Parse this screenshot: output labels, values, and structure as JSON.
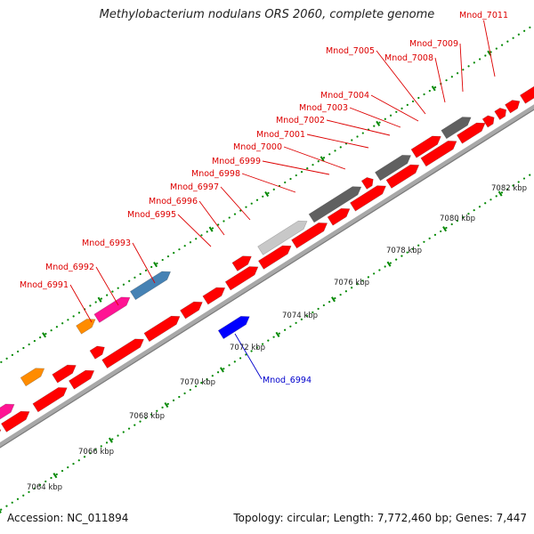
{
  "title": "Methylobacterium nodulans ORS 2060, complete genome",
  "accession": "Accession: NC_011894",
  "summary": "Topology: circular; Length: 7,772,460 bp; Genes: 7,447",
  "colors": {
    "forward_gene": "#ff0000",
    "reverse_gene": "#0000ff",
    "forward_label": "#dd0000",
    "reverse_label": "#0000cc",
    "tick": "#008800",
    "backbone": "#a8a8a8",
    "orange": "#ff8c00",
    "pink": "#ff1493",
    "steelblue": "#4682b4",
    "darkgray": "#606060",
    "lightgray": "#c8c8c8"
  },
  "ruler": [
    "7064 kbp",
    "7066 kbp",
    "7068 kbp",
    "7070 kbp",
    "7072 kbp",
    "7074 kbp",
    "7076 kbp",
    "7078 kbp",
    "7080 kbp",
    "7082 kbp"
  ],
  "forward_labels": [
    "Mnod_6991",
    "Mnod_6992",
    "Mnod_6993",
    "Mnod_6995",
    "Mnod_6996",
    "Mnod_6997",
    "Mnod_6998",
    "Mnod_6999",
    "Mnod_7000",
    "Mnod_7001",
    "Mnod_7002",
    "Mnod_7003",
    "Mnod_7004",
    "Mnod_7005",
    "Mnod_7008",
    "Mnod_7009",
    "Mnod_7011"
  ],
  "reverse_labels": [
    "Mnod_6994"
  ]
}
